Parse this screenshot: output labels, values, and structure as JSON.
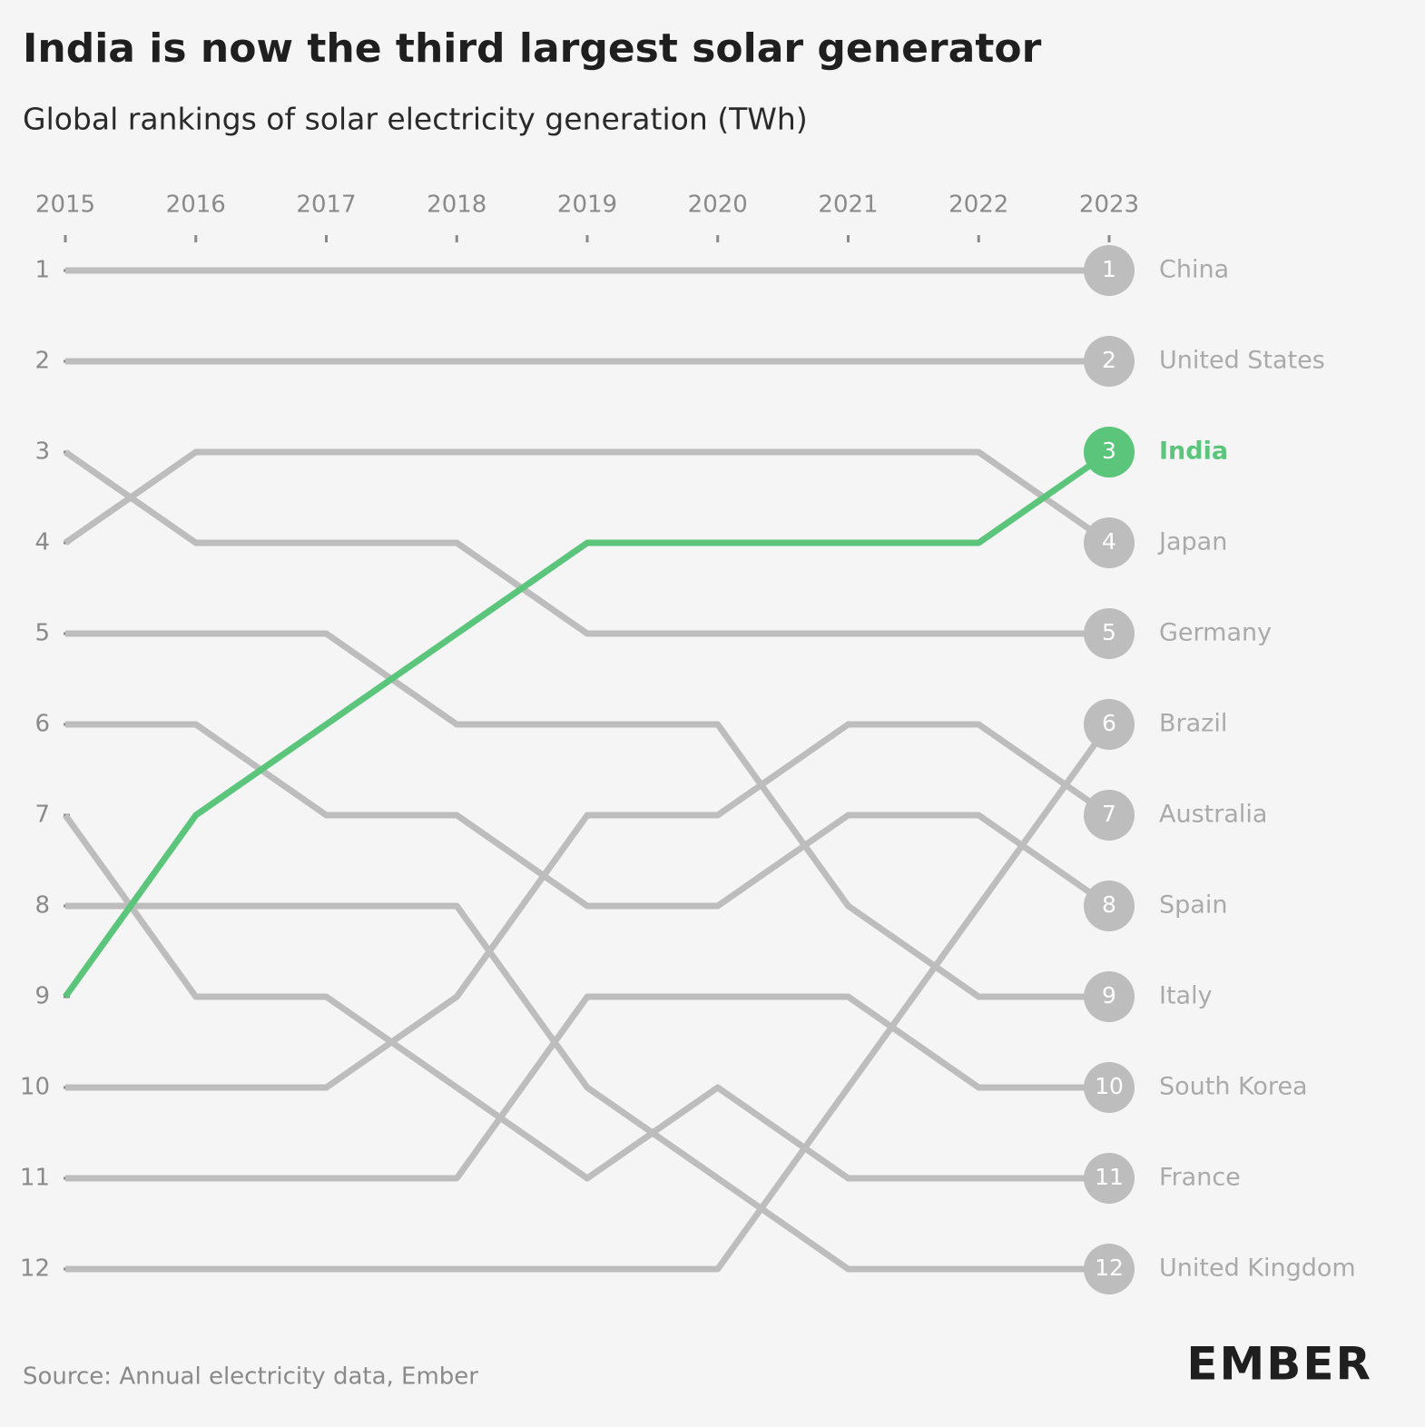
{
  "chart_data": {
    "type": "bump",
    "title": "India is now the third largest solar generator",
    "subtitle": "Global rankings of solar electricity generation (TWh)",
    "categories": [
      "2015",
      "2016",
      "2017",
      "2018",
      "2019",
      "2020",
      "2021",
      "2022",
      "2023"
    ],
    "ylim": [
      12,
      1
    ],
    "yticks": [
      1,
      2,
      3,
      4,
      5,
      6,
      7,
      8,
      9,
      10,
      11,
      12
    ],
    "series": [
      {
        "name": "China",
        "color": "#bdbdbd",
        "values": [
          1,
          1,
          1,
          1,
          1,
          1,
          1,
          1,
          1
        ]
      },
      {
        "name": "United States",
        "color": "#bdbdbd",
        "values": [
          2,
          2,
          2,
          2,
          2,
          2,
          2,
          2,
          2
        ]
      },
      {
        "name": "India",
        "color": "#5bc57b",
        "values": [
          9,
          7,
          6,
          5,
          4,
          4,
          4,
          4,
          3
        ]
      },
      {
        "name": "Japan",
        "color": "#bdbdbd",
        "values": [
          4,
          3,
          3,
          3,
          3,
          3,
          3,
          3,
          4
        ]
      },
      {
        "name": "Germany",
        "color": "#bdbdbd",
        "values": [
          3,
          4,
          4,
          4,
          5,
          5,
          5,
          5,
          5
        ]
      },
      {
        "name": "Brazil",
        "color": "#bdbdbd",
        "values": [
          12,
          12,
          12,
          12,
          12,
          12,
          10,
          8,
          6
        ]
      },
      {
        "name": "Australia",
        "color": "#bdbdbd",
        "values": [
          10,
          10,
          10,
          9,
          7,
          7,
          6,
          6,
          7
        ]
      },
      {
        "name": "Spain",
        "color": "#bdbdbd",
        "values": [
          6,
          6,
          7,
          7,
          8,
          8,
          7,
          7,
          8
        ]
      },
      {
        "name": "Italy",
        "color": "#bdbdbd",
        "values": [
          5,
          5,
          5,
          6,
          6,
          6,
          8,
          9,
          9
        ]
      },
      {
        "name": "South Korea",
        "color": "#bdbdbd",
        "values": [
          11,
          11,
          11,
          11,
          9,
          9,
          9,
          10,
          10
        ]
      },
      {
        "name": "France",
        "color": "#bdbdbd",
        "values": [
          7,
          9,
          9,
          10,
          11,
          10,
          11,
          11,
          11
        ]
      },
      {
        "name": "United Kingdom",
        "color": "#bdbdbd",
        "values": [
          8,
          8,
          8,
          8,
          10,
          11,
          12,
          12,
          12
        ]
      }
    ],
    "highlight": "India",
    "source": "Source: Annual electricity data, Ember",
    "brand": "EMBER"
  }
}
